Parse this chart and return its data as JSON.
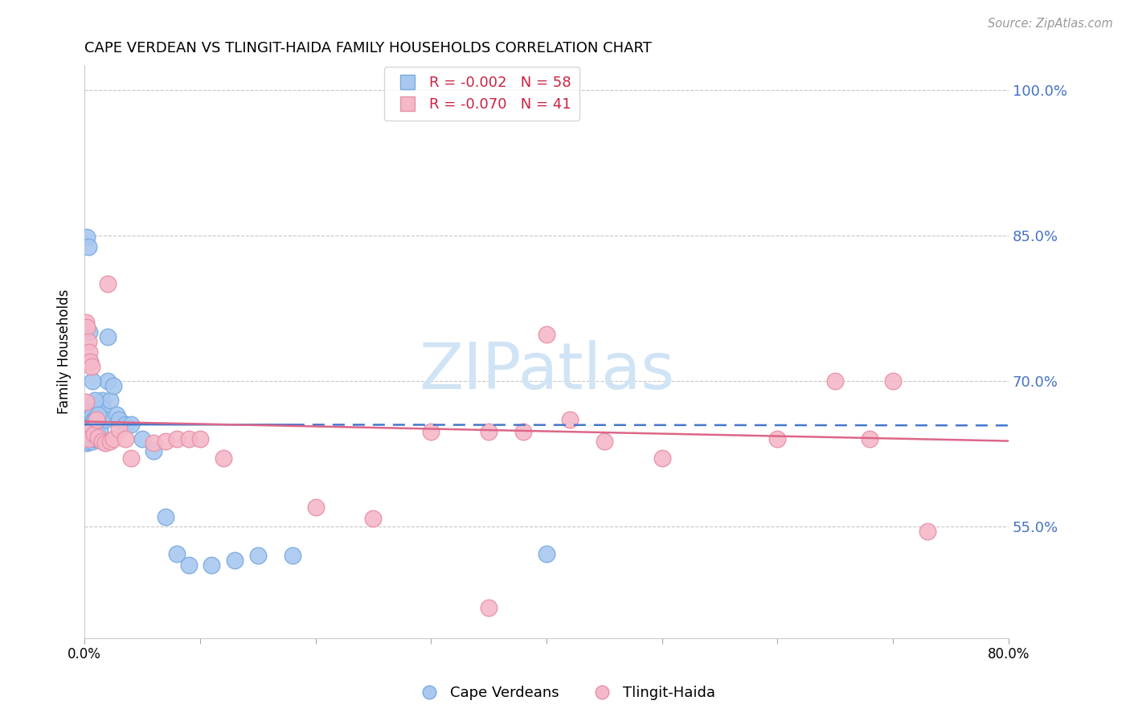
{
  "title": "CAPE VERDEAN VS TLINGIT-HAIDA FAMILY HOUSEHOLDS CORRELATION CHART",
  "source": "Source: ZipAtlas.com",
  "ylabel": "Family Households",
  "xlim": [
    0.0,
    0.8
  ],
  "ylim": [
    0.435,
    1.025
  ],
  "yticks": [
    0.55,
    0.7,
    0.85,
    1.0
  ],
  "ytick_labels": [
    "55.0%",
    "70.0%",
    "85.0%",
    "100.0%"
  ],
  "xticks": [
    0.0,
    0.1,
    0.2,
    0.3,
    0.4,
    0.5,
    0.6,
    0.7,
    0.8
  ],
  "xtick_labels": [
    "0.0%",
    "",
    "",
    "",
    "",
    "",
    "",
    "",
    "80.0%"
  ],
  "blue_color": "#A8C8F0",
  "pink_color": "#F5B8C8",
  "blue_edge_color": "#7AAAE0",
  "pink_edge_color": "#E890A8",
  "blue_line_color": "#4477CC",
  "pink_line_color": "#DD6688",
  "watermark_text": "ZIPatlas",
  "watermark_color": "#D0E4F5",
  "blue_R": -0.002,
  "pink_R": -0.07,
  "blue_N": 58,
  "pink_N": 41,
  "blue_line_y0": 0.655,
  "blue_line_y1": 0.654,
  "pink_line_y0": 0.658,
  "pink_line_y1": 0.638,
  "blue_scatter_x": [
    0.001,
    0.001,
    0.001,
    0.002,
    0.002,
    0.002,
    0.002,
    0.003,
    0.003,
    0.003,
    0.004,
    0.004,
    0.005,
    0.005,
    0.005,
    0.006,
    0.006,
    0.006,
    0.007,
    0.007,
    0.007,
    0.008,
    0.008,
    0.009,
    0.009,
    0.01,
    0.01,
    0.011,
    0.012,
    0.013,
    0.015,
    0.016,
    0.018,
    0.02,
    0.022,
    0.025,
    0.028,
    0.03,
    0.035,
    0.04,
    0.05,
    0.06,
    0.07,
    0.08,
    0.09,
    0.11,
    0.13,
    0.15,
    0.18,
    0.002,
    0.003,
    0.004,
    0.005,
    0.007,
    0.009,
    0.012,
    0.02,
    0.4
  ],
  "blue_scatter_y": [
    0.66,
    0.648,
    0.638,
    0.672,
    0.66,
    0.648,
    0.636,
    0.66,
    0.65,
    0.638,
    0.658,
    0.645,
    0.668,
    0.658,
    0.645,
    0.665,
    0.655,
    0.64,
    0.665,
    0.652,
    0.638,
    0.66,
    0.645,
    0.66,
    0.64,
    0.66,
    0.64,
    0.658,
    0.655,
    0.65,
    0.68,
    0.672,
    0.66,
    0.7,
    0.68,
    0.695,
    0.665,
    0.66,
    0.655,
    0.655,
    0.64,
    0.628,
    0.56,
    0.522,
    0.51,
    0.51,
    0.515,
    0.52,
    0.52,
    0.848,
    0.838,
    0.75,
    0.72,
    0.7,
    0.68,
    0.665,
    0.745,
    0.522
  ],
  "pink_scatter_x": [
    0.001,
    0.001,
    0.002,
    0.002,
    0.003,
    0.003,
    0.004,
    0.005,
    0.006,
    0.008,
    0.01,
    0.012,
    0.015,
    0.018,
    0.02,
    0.022,
    0.025,
    0.03,
    0.035,
    0.04,
    0.06,
    0.07,
    0.08,
    0.09,
    0.1,
    0.12,
    0.2,
    0.25,
    0.3,
    0.35,
    0.38,
    0.4,
    0.42,
    0.45,
    0.5,
    0.6,
    0.65,
    0.68,
    0.7,
    0.73,
    0.35
  ],
  "pink_scatter_y": [
    0.76,
    0.678,
    0.755,
    0.648,
    0.74,
    0.64,
    0.73,
    0.72,
    0.715,
    0.645,
    0.66,
    0.642,
    0.638,
    0.636,
    0.8,
    0.638,
    0.64,
    0.65,
    0.64,
    0.62,
    0.636,
    0.638,
    0.64,
    0.64,
    0.64,
    0.62,
    0.57,
    0.558,
    0.648,
    0.648,
    0.648,
    0.748,
    0.66,
    0.638,
    0.62,
    0.64,
    0.7,
    0.64,
    0.7,
    0.545,
    0.466
  ]
}
